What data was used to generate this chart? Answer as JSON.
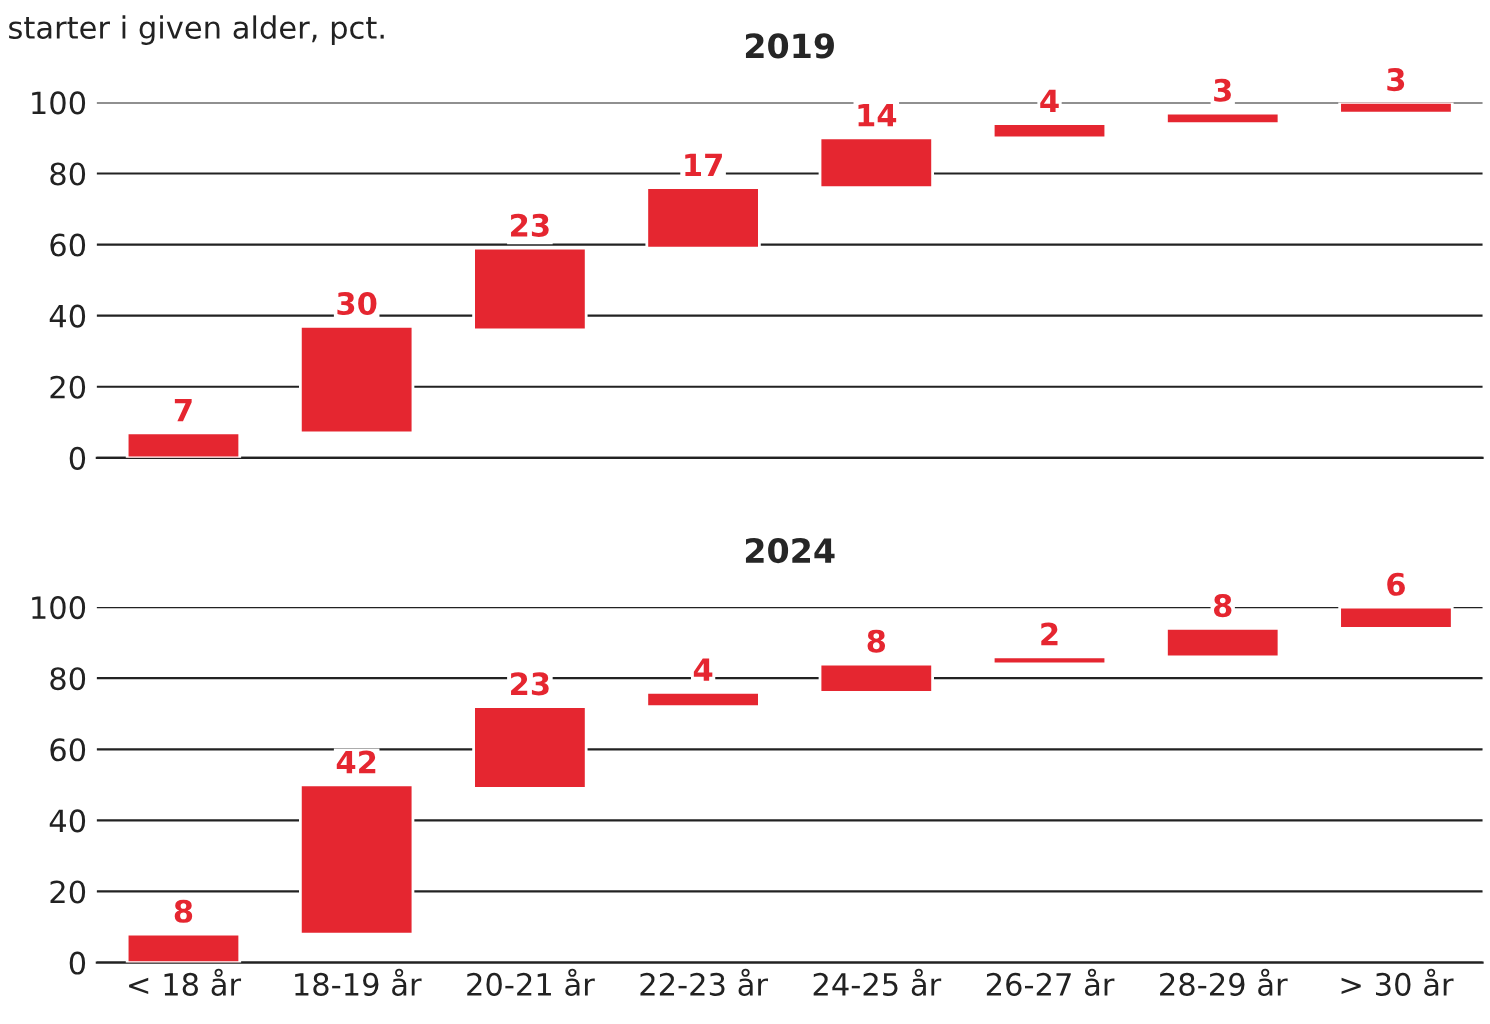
{
  "chart_data": [
    {
      "type": "bar",
      "title": "2019",
      "annotations": [
        "starter i given alder, pct."
      ],
      "categories": [
        null,
        null,
        null,
        null,
        null,
        null,
        null,
        null
      ],
      "values": [
        7,
        30,
        23,
        17,
        14,
        4,
        3,
        3
      ],
      "base": [
        0,
        7,
        36,
        59,
        76,
        90,
        94,
        97
      ],
      "color": "#e52630",
      "data_labels": true,
      "ylim": [
        0,
        100
      ],
      "yticks": [
        0,
        20,
        40,
        60,
        80,
        100
      ],
      "grid": "y",
      "legend": false
    },
    {
      "type": "bar",
      "title": "2024",
      "categories": [
        "< 18 år",
        "18-19 år",
        "20-21 år",
        "22-23 år",
        "24-25 år",
        "26-27 år",
        "28-29 år",
        "> 30 år"
      ],
      "values": [
        8,
        42,
        23,
        4,
        8,
        2,
        8,
        6
      ],
      "base": [
        0,
        8,
        49,
        72,
        76,
        84,
        86,
        94
      ],
      "color": "#e52630",
      "data_labels": true,
      "ylim": [
        0,
        100
      ],
      "yticks": [
        0,
        20,
        40,
        60,
        80,
        100
      ],
      "grid": "y",
      "legend": false
    }
  ]
}
